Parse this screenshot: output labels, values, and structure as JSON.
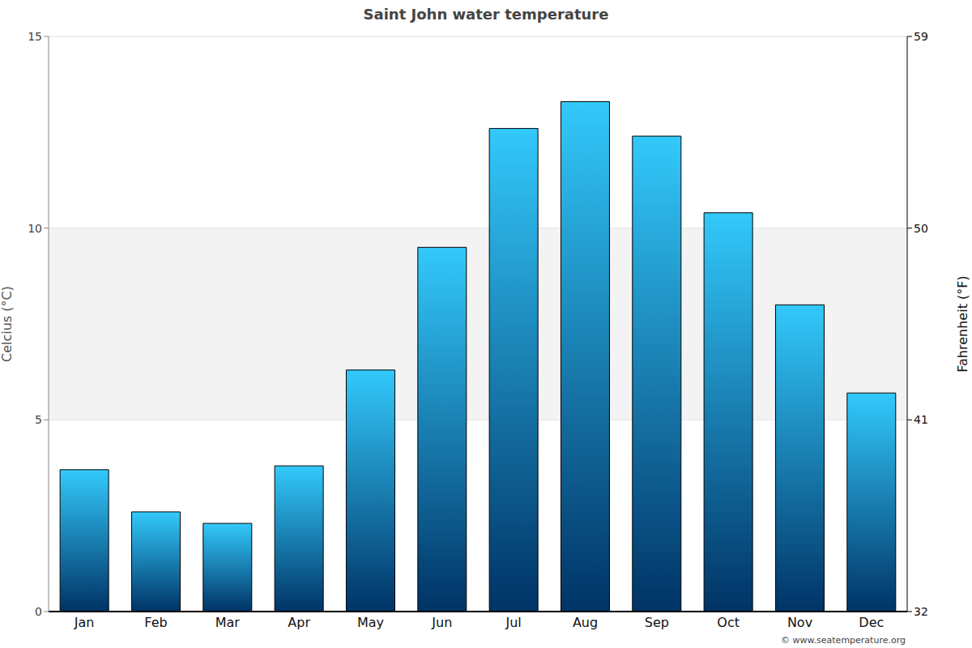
{
  "chart_data": {
    "type": "bar",
    "title": "Saint John water temperature",
    "categories": [
      "Jan",
      "Feb",
      "Mar",
      "Apr",
      "May",
      "Jun",
      "Jul",
      "Aug",
      "Sep",
      "Oct",
      "Nov",
      "Dec"
    ],
    "values": [
      3.7,
      2.6,
      2.3,
      3.8,
      6.3,
      9.5,
      12.6,
      13.3,
      12.4,
      10.4,
      8.0,
      5.7
    ],
    "color": "#33c9fb",
    "y_label": "Celcius (°C)",
    "y2_label": "Fahrenheit (°F)",
    "ylim": [
      0,
      15
    ],
    "yticks": [
      0,
      5,
      10,
      15
    ],
    "y2lim": [
      32,
      59
    ],
    "y2ticks": [
      32,
      41,
      50,
      59
    ],
    "grid": true,
    "annotation": "© www.seatemperature.org"
  }
}
